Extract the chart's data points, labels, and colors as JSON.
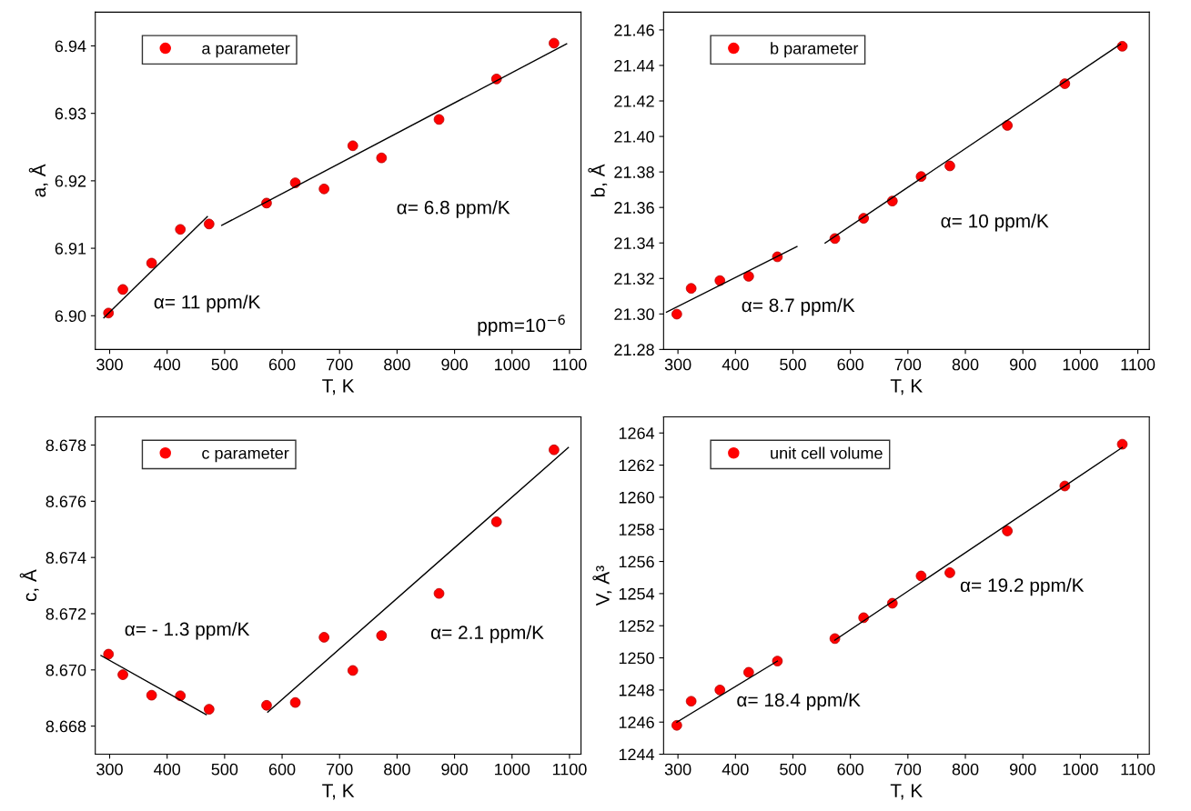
{
  "chart_data": [
    {
      "type": "scatter",
      "xlabel": "T, K",
      "ylabel": "a, Å",
      "xlim": [
        275,
        1120
      ],
      "xticks": [
        300,
        400,
        500,
        600,
        700,
        800,
        900,
        1000,
        1100
      ],
      "ylim": [
        6.895,
        6.945
      ],
      "yticks": [
        {
          "value": 6.9,
          "label": "6.90"
        },
        {
          "value": 6.91,
          "label": "6.91"
        },
        {
          "value": 6.92,
          "label": "6.92"
        },
        {
          "value": 6.93,
          "label": "6.93"
        },
        {
          "value": 6.94,
          "label": "6.94"
        }
      ],
      "grid": false,
      "legend": "top left",
      "x": [
        298,
        323,
        373,
        423,
        473,
        573,
        623,
        673,
        723,
        773,
        873,
        973,
        1073
      ],
      "series": [
        {
          "name": "a parameter",
          "marker": "circle",
          "color": "#ff0000",
          "values": [
            6.9004,
            6.9039,
            6.9078,
            6.9128,
            6.9136,
            6.9167,
            6.9197,
            6.9188,
            6.9252,
            6.9234,
            6.9291,
            6.9351,
            6.9404
          ]
        },
        {
          "type": "line",
          "color": "#000000",
          "x": [
            290,
            470
          ],
          "values": [
            6.8997,
            6.9147
          ]
        },
        {
          "type": "line",
          "color": "#000000",
          "x": [
            495,
            1095
          ],
          "values": [
            6.9134,
            6.9403
          ]
        }
      ],
      "annotations": [
        "α= 11 ppm/K",
        "α= 6.8 ppm/K",
        "ppm=10$^{−6}$"
      ]
    },
    {
      "type": "scatter",
      "xlabel": "T, K",
      "ylabel": "b, Å",
      "xlim": [
        275,
        1120
      ],
      "xticks": [
        300,
        400,
        500,
        600,
        700,
        800,
        900,
        1000,
        1100
      ],
      "ylim": [
        21.28,
        21.47
      ],
      "yticks": [
        {
          "value": 21.28,
          "label": "21.28"
        },
        {
          "value": 21.3,
          "label": "21.30"
        },
        {
          "value": 21.32,
          "label": "21.32"
        },
        {
          "value": 21.34,
          "label": "21.34"
        },
        {
          "value": 21.36,
          "label": "21.36"
        },
        {
          "value": 21.38,
          "label": "21.38"
        },
        {
          "value": 21.4,
          "label": "21.40"
        },
        {
          "value": 21.42,
          "label": "21.42"
        },
        {
          "value": 21.44,
          "label": "21.44"
        },
        {
          "value": 21.46,
          "label": "21.46"
        }
      ],
      "grid": false,
      "legend": "top left",
      "x": [
        298,
        323,
        373,
        423,
        473,
        573,
        623,
        673,
        723,
        773,
        873,
        973,
        1073
      ],
      "series": [
        {
          "name": "b parameter",
          "marker": "circle",
          "color": "#ff0000",
          "values": [
            21.2999,
            21.3144,
            21.3188,
            21.3212,
            21.3322,
            21.3425,
            21.3539,
            21.3636,
            21.3774,
            21.3834,
            21.4062,
            21.4297,
            21.4508
          ]
        },
        {
          "type": "line",
          "color": "#000000",
          "x": [
            280,
            507
          ],
          "values": [
            21.301,
            21.338
          ]
        },
        {
          "type": "line",
          "color": "#000000",
          "x": [
            556,
            1070
          ],
          "values": [
            21.34,
            21.452
          ]
        }
      ],
      "annotations": [
        "α= 8.7 ppm/K",
        "α= 10 ppm/K"
      ]
    },
    {
      "type": "scatter",
      "xlabel": "T, K",
      "ylabel": "c, Å",
      "xlim": [
        275,
        1120
      ],
      "xticks": [
        300,
        400,
        500,
        600,
        700,
        800,
        900,
        1000,
        1100
      ],
      "ylim": [
        8.667,
        8.679
      ],
      "yticks": [
        {
          "value": 8.668,
          "label": "8.668"
        },
        {
          "value": 8.67,
          "label": "8.670"
        },
        {
          "value": 8.672,
          "label": "8.672"
        },
        {
          "value": 8.674,
          "label": "8.674"
        },
        {
          "value": 8.676,
          "label": "8.676"
        },
        {
          "value": 8.678,
          "label": "8.678"
        }
      ],
      "grid": false,
      "legend": "top left",
      "x": [
        298,
        323,
        373,
        423,
        473,
        573,
        623,
        673,
        723,
        773,
        873,
        973,
        1073
      ],
      "series": [
        {
          "name": "c parameter",
          "marker": "circle",
          "color": "#ff0000",
          "values": [
            8.67056,
            8.66983,
            8.6691,
            8.66908,
            8.6686,
            8.66874,
            8.66884,
            8.67116,
            8.66998,
            8.67122,
            8.67272,
            8.67527,
            8.67783
          ]
        },
        {
          "type": "line",
          "color": "#000000",
          "x": [
            285,
            468
          ],
          "values": [
            8.67051,
            8.66841
          ]
        },
        {
          "type": "line",
          "color": "#000000",
          "x": [
            575,
            1098
          ],
          "values": [
            8.6685,
            8.67791
          ]
        }
      ],
      "annotations": [
        "α= - 1.3 ppm/K",
        "α= 2.1 ppm/K"
      ]
    },
    {
      "type": "scatter",
      "xlabel": "T, K",
      "ylabel": "V, Å³",
      "xlim": [
        275,
        1120
      ],
      "xticks": [
        300,
        400,
        500,
        600,
        700,
        800,
        900,
        1000,
        1100
      ],
      "ylim": [
        1244,
        1265
      ],
      "yticks": [
        1244,
        1246,
        1248,
        1250,
        1252,
        1254,
        1256,
        1258,
        1260,
        1262,
        1264
      ],
      "grid": false,
      "legend": "top left",
      "x": [
        298,
        323,
        373,
        423,
        473,
        573,
        623,
        673,
        723,
        773,
        873,
        973,
        1073
      ],
      "series": [
        {
          "name": "unit cell volume",
          "marker": "circle",
          "color": "#ff0000",
          "values": [
            1245.8,
            1247.3,
            1248.0,
            1249.1,
            1249.8,
            1251.2,
            1252.5,
            1253.4,
            1255.1,
            1255.3,
            1257.9,
            1260.7,
            1263.3
          ]
        },
        {
          "type": "line",
          "color": "#000000",
          "x": [
            298,
            473
          ],
          "values": [
            1246.0,
            1249.8
          ]
        },
        {
          "type": "line",
          "color": "#000000",
          "x": [
            573,
            1073
          ],
          "values": [
            1251.1,
            1263.1
          ]
        }
      ],
      "annotations": [
        "α= 18.4 ppm/K",
        "α= 19.2 ppm/K"
      ]
    }
  ]
}
